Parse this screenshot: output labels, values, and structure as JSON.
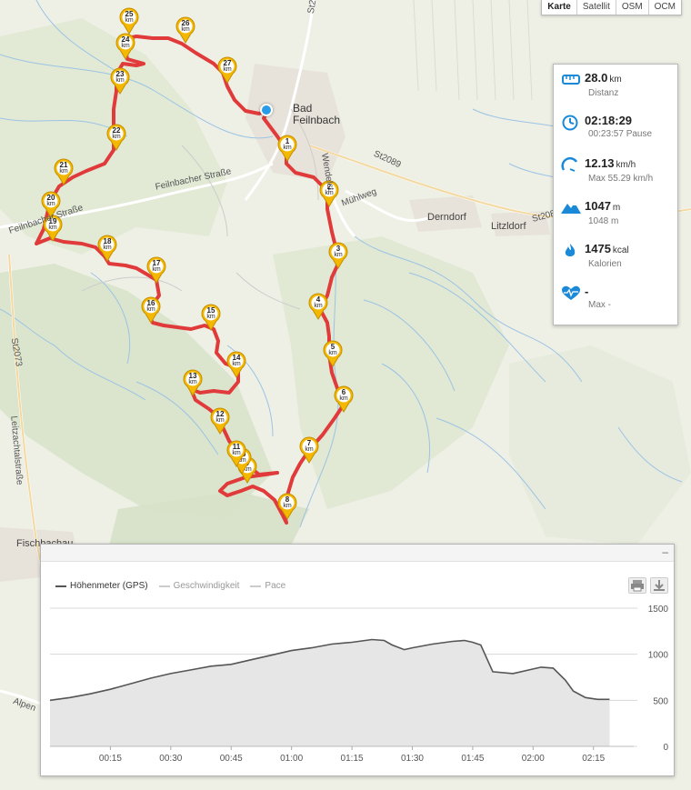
{
  "layers": [
    "Karte",
    "Satellit",
    "OSM",
    "OCM"
  ],
  "active_layer": "Karte",
  "map_labels": {
    "town_line1": "Bad",
    "town_line2": "Feilnbach",
    "road_st2089_a": "St2089",
    "road_st2089_b": "St2089",
    "road_st2": "St2",
    "derndorf": "Derndorf",
    "litzldorf": "Litzldorf",
    "muehlweg": "Mühlweg",
    "wendelsteinstr": "Wendelst.",
    "feilnbacher_strasse": "Feilnbacher Straße",
    "feilnbacher_strasse_2": "Feilnbacher Straße",
    "st2073": "St2073",
    "leitzachtalstrasse": "Leitzachtalstraße",
    "fischbachau": "Fischbachau",
    "alpen": "Alpen"
  },
  "markers": [
    "1",
    "2",
    "3",
    "4",
    "5",
    "6",
    "7",
    "8",
    "9",
    "10",
    "11",
    "12",
    "13",
    "14",
    "15",
    "16",
    "17",
    "18",
    "19",
    "20",
    "21",
    "22",
    "23",
    "24",
    "25",
    "26",
    "27"
  ],
  "marker_unit": "km",
  "stats": {
    "distance": {
      "value": "28.0",
      "unit": "km",
      "label": "Distanz",
      "icon": "ruler-icon"
    },
    "time": {
      "value": "02:18:29",
      "sub": "00:23:57 Pause",
      "icon": "clock-icon"
    },
    "speed": {
      "value": "12.13",
      "unit": "km/h",
      "sub": "Max 55.29 km/h",
      "icon": "speedometer-icon"
    },
    "elevation": {
      "value": "1047",
      "unit": "m",
      "sub": "1048 m",
      "icon": "mountain-icon"
    },
    "calories": {
      "value": "1475",
      "unit": "kcal",
      "label": "Kalorien",
      "icon": "flame-icon"
    },
    "heartrate": {
      "value": "-",
      "sub": "Max -",
      "icon": "heart-rate-icon"
    }
  },
  "colors": {
    "route": "#e03a3a",
    "marker": "#f5b800",
    "accent": "#1a8ad8",
    "chart_line": "#555555",
    "chart_fill": "#e6e6e6"
  },
  "chart": {
    "collapse_label": "–",
    "legend": [
      {
        "label": "Höhenmeter (GPS)",
        "active": true
      },
      {
        "label": "Geschwindigkeit",
        "active": false
      },
      {
        "label": "Pace",
        "active": false
      }
    ],
    "print_icon": "printer-icon",
    "download_icon": "download-icon"
  },
  "chart_data": {
    "type": "area",
    "series": [
      {
        "name": "Höhenmeter (GPS)"
      }
    ],
    "xlabel": "",
    "ylabel": "",
    "ylim": [
      0,
      1500
    ],
    "yticks": [
      "0",
      "500",
      "1000",
      "1500"
    ],
    "xticks": [
      "00:15",
      "00:30",
      "00:45",
      "01:00",
      "01:15",
      "01:30",
      "01:45",
      "02:00",
      "02:15"
    ],
    "x_minutes": [
      0,
      5,
      10,
      15,
      20,
      25,
      30,
      35,
      40,
      45,
      50,
      55,
      60,
      65,
      70,
      75,
      80,
      83,
      85,
      88,
      90,
      95,
      100,
      103,
      105,
      107,
      110,
      115,
      120,
      122,
      125,
      128,
      130,
      133,
      136,
      139
    ],
    "y": [
      500,
      530,
      570,
      620,
      680,
      740,
      790,
      830,
      870,
      890,
      940,
      990,
      1040,
      1070,
      1110,
      1130,
      1160,
      1150,
      1100,
      1050,
      1070,
      1110,
      1140,
      1150,
      1130,
      1100,
      810,
      790,
      840,
      860,
      850,
      720,
      600,
      530,
      510,
      510
    ]
  }
}
